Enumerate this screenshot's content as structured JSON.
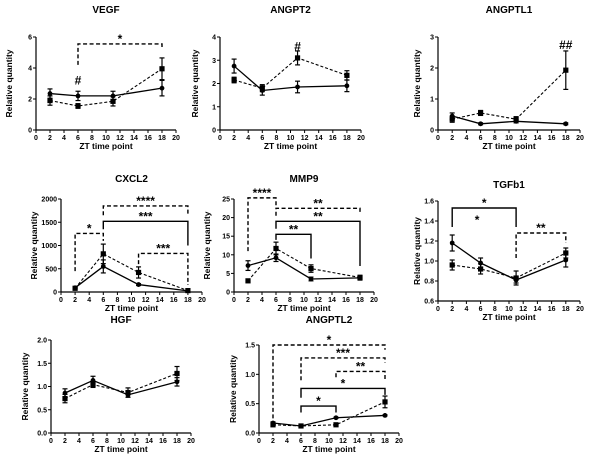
{
  "chart_data": [
    {
      "type": "line",
      "title": "VEGF",
      "xlabel": "ZT time point",
      "ylabel": "Relative quantity",
      "xlim": [
        0,
        20
      ],
      "ylim": [
        0,
        6
      ],
      "xticks": [
        0,
        2,
        4,
        6,
        8,
        10,
        12,
        14,
        16,
        18,
        20
      ],
      "yticks": [
        "0",
        "2",
        "4",
        "6"
      ],
      "yticks_values": [
        0,
        2,
        4,
        6
      ],
      "series": [
        {
          "name": "solid",
          "style": "solid",
          "marker": "circle",
          "x": [
            2,
            6,
            11,
            18
          ],
          "y": [
            2.35,
            2.2,
            2.2,
            2.7
          ],
          "err": [
            0.3,
            0.3,
            0.3,
            0.5
          ]
        },
        {
          "name": "dashed",
          "style": "dashed",
          "marker": "square",
          "x": [
            2,
            6,
            11,
            18
          ],
          "y": [
            1.9,
            1.55,
            1.85,
            3.95
          ],
          "err": [
            0.3,
            0.15,
            0.3,
            0.7
          ]
        }
      ],
      "brackets": [
        {
          "x1": 6,
          "x2": 18,
          "y": 5.55,
          "label": "*",
          "style": "dashed",
          "leg1": 4.2,
          "leg2": 5.2
        }
      ],
      "hashes": [
        {
          "x": 6,
          "y": 3.2,
          "label": "#"
        }
      ]
    },
    {
      "type": "line",
      "title": "ANGPT2",
      "xlabel": "ZT time point",
      "ylabel": "Relative quantity",
      "xlim": [
        0,
        20
      ],
      "ylim": [
        0,
        4
      ],
      "xticks": [
        0,
        2,
        4,
        6,
        8,
        10,
        12,
        14,
        16,
        18,
        20
      ],
      "yticks": [
        "0",
        "1",
        "2",
        "3",
        "4"
      ],
      "yticks_values": [
        0,
        1,
        2,
        3,
        4
      ],
      "series": [
        {
          "name": "solid",
          "style": "solid",
          "marker": "circle",
          "x": [
            2,
            6,
            11,
            18
          ],
          "y": [
            2.75,
            1.7,
            1.85,
            1.9
          ],
          "err": [
            0.3,
            0.2,
            0.25,
            0.25
          ]
        },
        {
          "name": "dashed",
          "style": "dashed",
          "marker": "square",
          "x": [
            2,
            6,
            11,
            18
          ],
          "y": [
            2.15,
            1.8,
            3.1,
            2.35
          ],
          "err": [
            0.12,
            0.15,
            0.3,
            0.2
          ]
        }
      ],
      "brackets": [],
      "hashes": [
        {
          "x": 11,
          "y": 3.6,
          "label": "#"
        }
      ]
    },
    {
      "type": "line",
      "title": "ANGPTL1",
      "xlabel": "ZT time point",
      "ylabel": "Relative quantity",
      "xlim": [
        0,
        20
      ],
      "ylim": [
        0,
        3
      ],
      "xticks": [
        0,
        2,
        4,
        6,
        8,
        10,
        12,
        14,
        16,
        18,
        20
      ],
      "yticks": [
        "0",
        "1",
        "2",
        "3"
      ],
      "yticks_values": [
        0,
        1,
        2,
        3
      ],
      "series": [
        {
          "name": "solid",
          "style": "solid",
          "marker": "circle",
          "x": [
            2,
            6,
            11,
            18
          ],
          "y": [
            0.45,
            0.2,
            0.28,
            0.2
          ],
          "err": [
            0.1,
            0.03,
            0.05,
            0.03
          ]
        },
        {
          "name": "dashed",
          "style": "dashed",
          "marker": "square",
          "x": [
            2,
            6,
            11,
            18
          ],
          "y": [
            0.35,
            0.55,
            0.35,
            1.93
          ],
          "err": [
            0.1,
            0.08,
            0.08,
            0.62
          ]
        }
      ],
      "brackets": [],
      "hashes": [
        {
          "x": 18,
          "y": 2.75,
          "label": "##"
        }
      ]
    },
    {
      "type": "line",
      "title": "CXCL2",
      "xlabel": "ZT time point",
      "ylabel": "Relative quantity",
      "xlim": [
        0,
        20
      ],
      "ylim": [
        0,
        2000
      ],
      "xticks": [
        0,
        2,
        4,
        6,
        8,
        10,
        12,
        14,
        16,
        18,
        20
      ],
      "yticks": [
        "0",
        "500",
        "1000",
        "1500",
        "2000"
      ],
      "yticks_values": [
        0,
        500,
        1000,
        1500,
        2000
      ],
      "series": [
        {
          "name": "solid",
          "style": "solid",
          "marker": "circle",
          "x": [
            2,
            6,
            11,
            18
          ],
          "y": [
            90,
            550,
            160,
            25
          ],
          "err": [
            15,
            140,
            20,
            5
          ]
        },
        {
          "name": "dashed",
          "style": "dashed",
          "marker": "square",
          "x": [
            2,
            6,
            11,
            18
          ],
          "y": [
            80,
            820,
            420,
            30
          ],
          "err": [
            15,
            210,
            120,
            5
          ]
        }
      ],
      "brackets": [
        {
          "x1": 6,
          "x2": 18,
          "y": 1850,
          "label": "****",
          "style": "dashed",
          "leg1": 1650,
          "leg2": 1650
        },
        {
          "x1": 6,
          "x2": 18,
          "y": 1520,
          "label": "***",
          "style": "solid",
          "leg1": 1350,
          "leg2": 1000
        },
        {
          "x1": 2,
          "x2": 6,
          "y": 1260,
          "label": "*",
          "style": "dashed",
          "leg1": 450,
          "leg2": 1100
        },
        {
          "x1": 11,
          "x2": 18,
          "y": 830,
          "label": "***",
          "style": "dashed",
          "leg1": 600,
          "leg2": 150
        }
      ],
      "hashes": []
    },
    {
      "type": "line",
      "title": "MMP9",
      "xlabel": "ZT time point",
      "ylabel": "Relative quantity",
      "xlim": [
        0,
        20
      ],
      "ylim": [
        0,
        25
      ],
      "xticks": [
        0,
        2,
        4,
        6,
        8,
        10,
        12,
        14,
        16,
        18,
        20
      ],
      "yticks": [
        "0",
        "5",
        "10",
        "15",
        "20",
        "25"
      ],
      "yticks_values": [
        0,
        5,
        10,
        15,
        20,
        25
      ],
      "series": [
        {
          "name": "solid",
          "style": "solid",
          "marker": "circle",
          "x": [
            2,
            6,
            11,
            18
          ],
          "y": [
            7.1,
            9.2,
            3.5,
            3.8
          ],
          "err": [
            1.3,
            1.0,
            0.5,
            0.6
          ]
        },
        {
          "name": "dashed",
          "style": "dashed",
          "marker": "square",
          "x": [
            2,
            6,
            11,
            18
          ],
          "y": [
            3.0,
            11.7,
            6.3,
            3.9
          ],
          "err": [
            0.3,
            1.7,
            1.0,
            0.6
          ]
        }
      ],
      "brackets": [
        {
          "x1": 2,
          "x2": 6,
          "y": 25.3,
          "label": "****",
          "style": "dashed",
          "leg1": 11,
          "leg2": 23
        },
        {
          "x1": 6,
          "x2": 18,
          "y": 22.5,
          "label": "**",
          "style": "dashed",
          "leg1": 20.5,
          "leg2": 21
        },
        {
          "x1": 6,
          "x2": 18,
          "y": 19.0,
          "label": "**",
          "style": "solid",
          "leg1": 17,
          "leg2": 7
        },
        {
          "x1": 6,
          "x2": 11,
          "y": 15.5,
          "label": "**",
          "style": "solid",
          "leg1": 14,
          "leg2": 9
        }
      ],
      "hashes": []
    },
    {
      "type": "line",
      "title": "TGFb1",
      "xlabel": "ZT time point",
      "ylabel": "Relative quantity",
      "xlim": [
        0,
        20
      ],
      "ylim": [
        0.6,
        1.6
      ],
      "xticks": [
        0,
        2,
        4,
        6,
        8,
        10,
        12,
        14,
        16,
        18,
        20
      ],
      "yticks": [
        "0.6",
        "0.8",
        "1.0",
        "1.2",
        "1.4",
        "1.6"
      ],
      "yticks_values": [
        0.6,
        0.8,
        1.0,
        1.2,
        1.4,
        1.6
      ],
      "series": [
        {
          "name": "solid",
          "style": "solid",
          "marker": "circle",
          "x": [
            2,
            6,
            11,
            18
          ],
          "y": [
            1.18,
            0.98,
            0.81,
            1.01
          ],
          "err": [
            0.08,
            0.05,
            0.03,
            0.07
          ]
        },
        {
          "name": "dashed",
          "style": "dashed",
          "marker": "square",
          "x": [
            2,
            6,
            11,
            18
          ],
          "y": [
            0.96,
            0.92,
            0.83,
            1.08
          ],
          "err": [
            0.05,
            0.05,
            0.07,
            0.05
          ]
        }
      ],
      "brackets": [
        {
          "x1": 2,
          "x2": 11,
          "y": 1.53,
          "label": "*",
          "style": "solid",
          "leg1": 1.34,
          "leg2": 1.34
        },
        {
          "x1": 11,
          "x2": 18,
          "y": 1.28,
          "label": "**",
          "style": "dashed",
          "leg1": 1.03,
          "leg2": 1.18
        }
      ],
      "extra_marks": [
        {
          "x": 5.5,
          "y": 1.43,
          "label": "*"
        }
      ],
      "hashes": []
    },
    {
      "type": "line",
      "title": "HGF",
      "xlabel": "ZT time point",
      "ylabel": "Relative quantity",
      "xlim": [
        0,
        20
      ],
      "ylim": [
        0,
        2.0
      ],
      "xticks": [
        0,
        2,
        4,
        6,
        8,
        10,
        12,
        14,
        16,
        18,
        20
      ],
      "yticks": [
        "0.0",
        "0.5",
        "1.0",
        "1.5",
        "2.0"
      ],
      "yticks_values": [
        0,
        0.5,
        1.0,
        1.5,
        2.0
      ],
      "series": [
        {
          "name": "solid",
          "style": "solid",
          "marker": "circle",
          "x": [
            2,
            6,
            11,
            18
          ],
          "y": [
            0.86,
            1.13,
            0.82,
            1.1
          ],
          "err": [
            0.09,
            0.09,
            0.05,
            0.09
          ]
        },
        {
          "name": "dashed",
          "style": "dashed",
          "marker": "square",
          "x": [
            2,
            6,
            11,
            18
          ],
          "y": [
            0.74,
            1.04,
            0.87,
            1.28
          ],
          "err": [
            0.09,
            0.06,
            0.1,
            0.15
          ]
        }
      ],
      "brackets": [],
      "hashes": []
    },
    {
      "type": "line",
      "title": "ANGPTL2",
      "xlabel": "ZT time point",
      "ylabel": "Relative quantity",
      "xlim": [
        0,
        20
      ],
      "ylim": [
        0,
        1.5
      ],
      "xticks": [
        0,
        2,
        4,
        6,
        8,
        10,
        12,
        14,
        16,
        18,
        20
      ],
      "yticks": [
        "0.0",
        "0.5",
        "1.0",
        "1.5"
      ],
      "yticks_values": [
        0,
        0.5,
        1.0,
        1.5
      ],
      "series": [
        {
          "name": "solid",
          "style": "solid",
          "marker": "circle",
          "x": [
            2,
            6,
            11,
            18
          ],
          "y": [
            0.17,
            0.12,
            0.26,
            0.3
          ],
          "err": [
            0.02,
            0.01,
            0.01,
            0.01
          ]
        },
        {
          "name": "dashed",
          "style": "dashed",
          "marker": "square",
          "x": [
            2,
            6,
            11,
            18
          ],
          "y": [
            0.14,
            0.12,
            0.14,
            0.53
          ],
          "err": [
            0.03,
            0.02,
            0.02,
            0.1
          ]
        }
      ],
      "brackets": [
        {
          "x1": 2,
          "x2": 18,
          "y": 1.5,
          "label": "*",
          "style": "dashed",
          "leg1": 0.25,
          "leg2": 1.42
        },
        {
          "x1": 6,
          "x2": 18,
          "y": 1.28,
          "label": "***",
          "style": "dashed",
          "leg1": 0.9,
          "leg2": 1.2
        },
        {
          "x1": 11,
          "x2": 18,
          "y": 1.05,
          "label": "**",
          "style": "dashed",
          "leg1": 0.95,
          "leg2": 0.9
        },
        {
          "x1": 6,
          "x2": 18,
          "y": 0.76,
          "label": "*",
          "style": "solid",
          "leg1": 0.6,
          "leg2": 0.65
        },
        {
          "x1": 6,
          "x2": 11,
          "y": 0.46,
          "label": "*",
          "style": "solid",
          "leg1": 0.35,
          "leg2": 0.35
        }
      ],
      "hashes": []
    }
  ]
}
